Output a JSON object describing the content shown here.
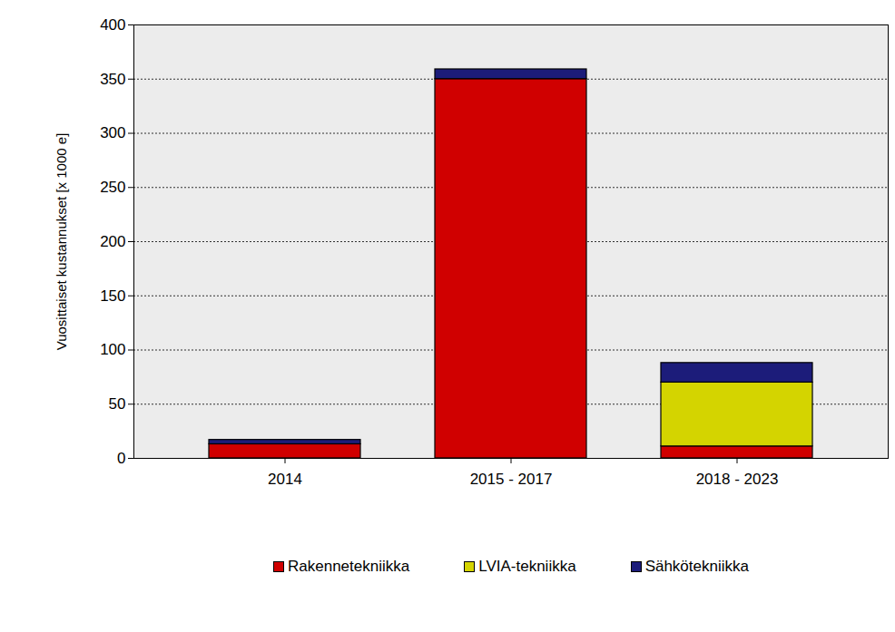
{
  "chart_data": {
    "type": "bar",
    "stacked": true,
    "categories": [
      "2014",
      "2015 - 2017",
      "2018 - 2023"
    ],
    "series": [
      {
        "name": "Rakennetekniikka",
        "color": "#d00000",
        "values": [
          13,
          350,
          11
        ]
      },
      {
        "name": "LVIA-tekniikka",
        "color": "#d4d400",
        "values": [
          0,
          0,
          59
        ]
      },
      {
        "name": "Sähkötekniikka",
        "color": "#1c1c7a",
        "values": [
          4,
          9,
          18
        ]
      }
    ],
    "y_label": "Vuosittaiset kustannukset [x 1000 e]",
    "ylim": [
      0,
      400
    ],
    "yticks": [
      0,
      50,
      100,
      150,
      200,
      250,
      300,
      350,
      400
    ],
    "grid": true,
    "legend": "bottom"
  }
}
